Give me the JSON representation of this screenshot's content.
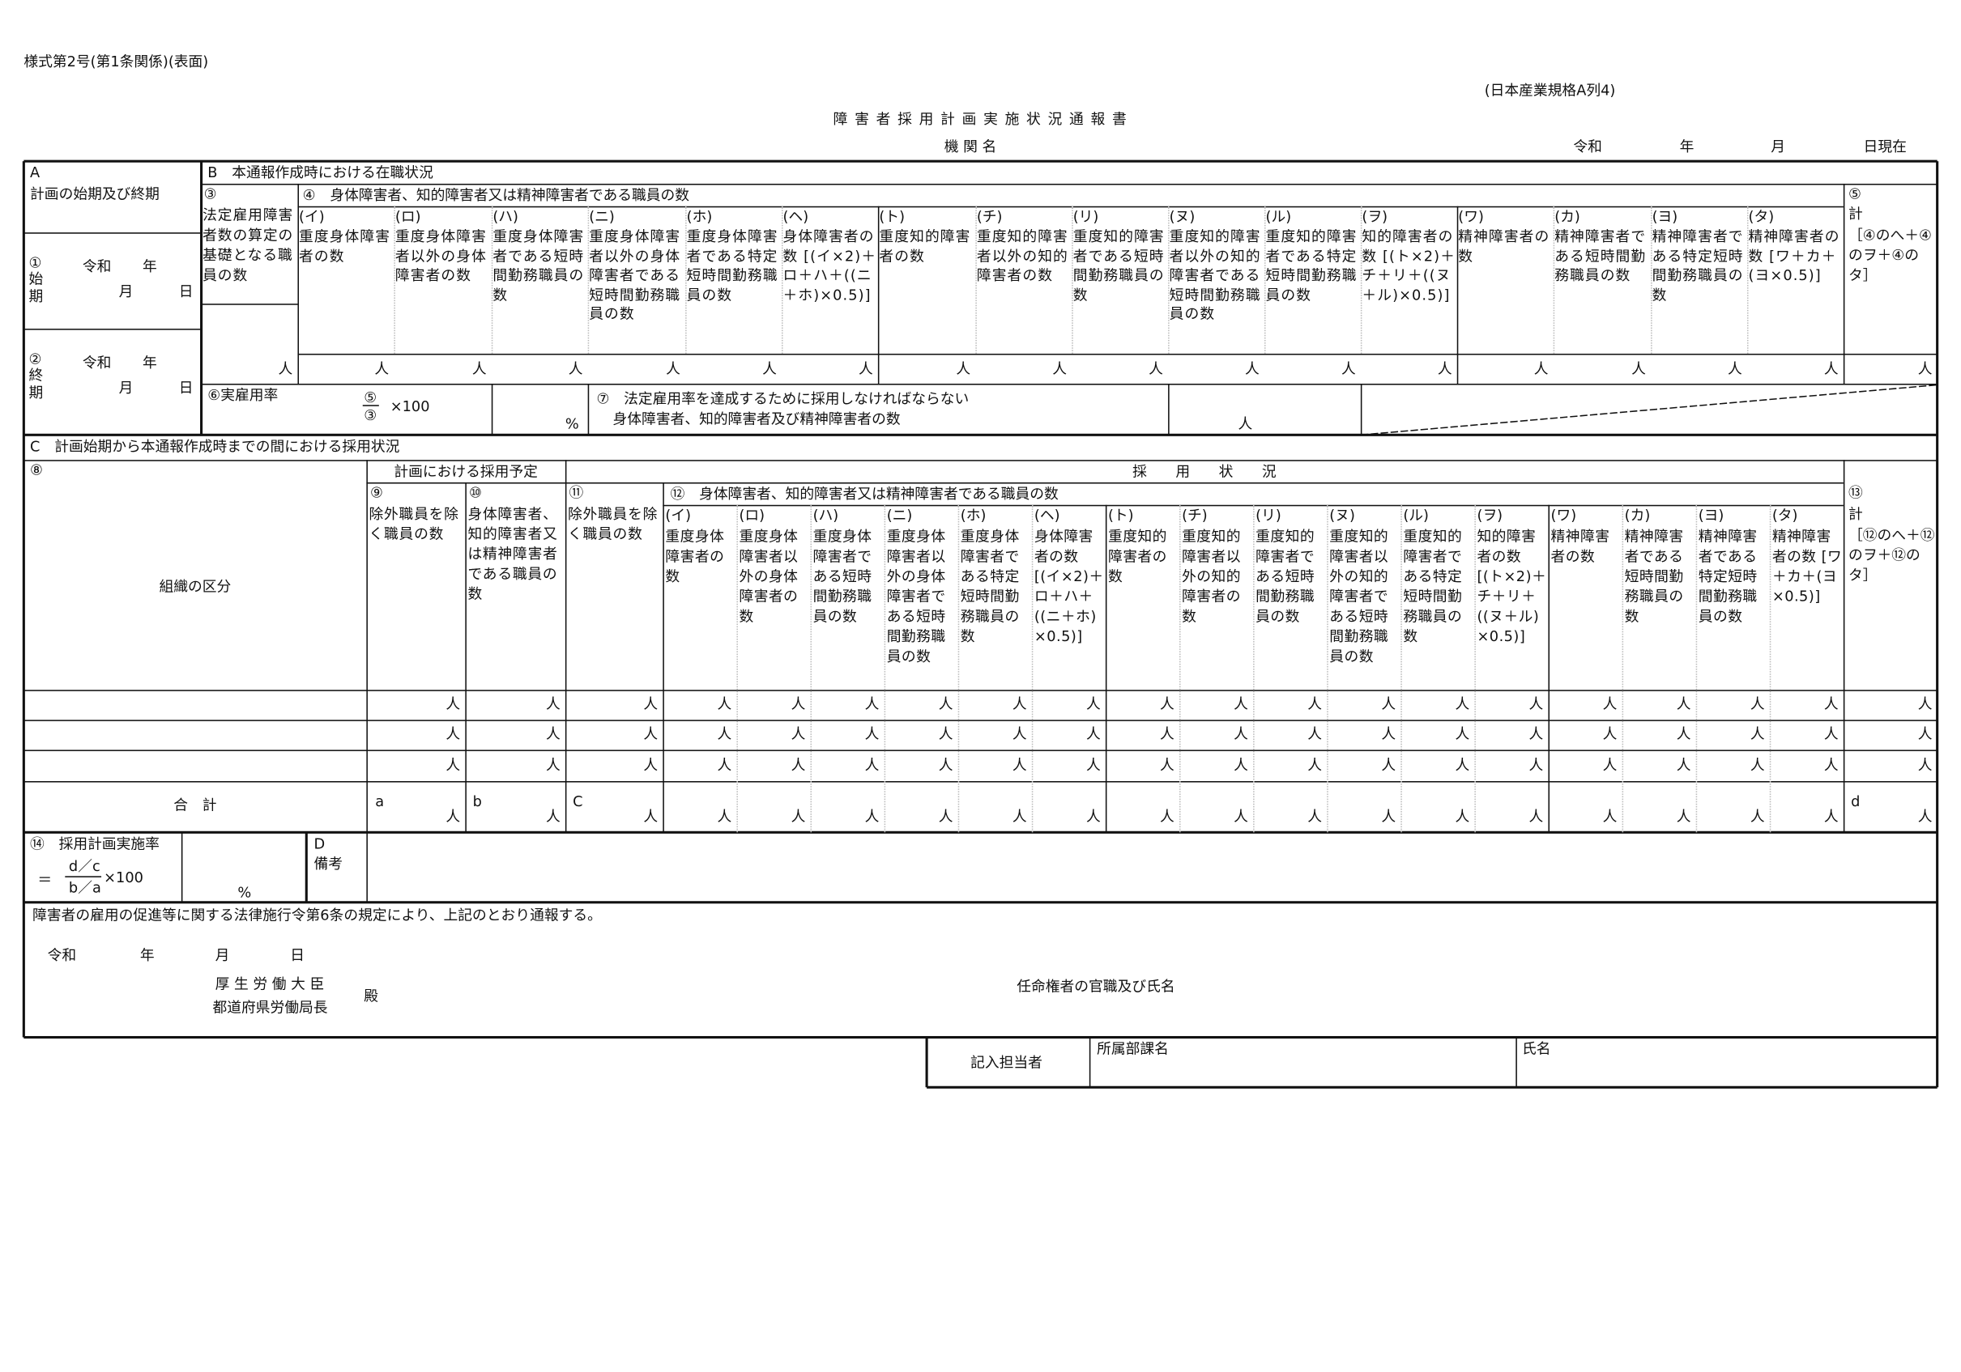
{
  "header": {
    "form_number": "様式第2号(第1条関係)(表面)",
    "jis": "(日本産業規格A列4)",
    "title": "障 害 者 採 用 計 画 実 施 状 況 通 報 書",
    "agency_label": "機 関 名",
    "date": {
      "era": "令和",
      "year": "年",
      "month": "月",
      "day_suffix": "日現在"
    }
  },
  "unit": "人",
  "categories": [
    {
      "code": "(イ)",
      "text": "重度身体障害者の数"
    },
    {
      "code": "(ロ)",
      "text": "重度身体障害者以外の身体障害者の数"
    },
    {
      "code": "(ハ)",
      "text": "重度身体障害者である短時間勤務職員の数"
    },
    {
      "code": "(ニ)",
      "text": "重度身体障害者以外の身体障害者である短時間勤務職員の数"
    },
    {
      "code": "(ホ)",
      "text": "重度身体障害者である特定短時間勤務職員の数"
    },
    {
      "code": "(ヘ)",
      "text": "身体障害者の数 [(イ×2)＋ロ＋ハ＋((ニ＋ホ)×0.5)]"
    },
    {
      "code": "(ト)",
      "text": "重度知的障害者の数"
    },
    {
      "code": "(チ)",
      "text": "重度知的障害者以外の知的障害者の数"
    },
    {
      "code": "(リ)",
      "text": "重度知的障害者である短時間勤務職員の数"
    },
    {
      "code": "(ヌ)",
      "text": "重度知的障害者以外の知的障害者である短時間勤務職員の数"
    },
    {
      "code": "(ル)",
      "text": "重度知的障害者である特定短時間勤務職員の数"
    },
    {
      "code": "(ヲ)",
      "text": "知的障害者の数 [(ト×2)＋チ＋リ＋((ヌ＋ル)×0.5)]"
    },
    {
      "code": "(ワ)",
      "text": "精神障害者の数"
    },
    {
      "code": "(カ)",
      "text": "精神障害者である短時間勤務職員の数"
    },
    {
      "code": "(ヨ)",
      "text": "精神障害者である特定短時間勤務職員の数"
    },
    {
      "code": "(タ)",
      "text": "精神障害者の数 [ワ＋カ＋(ヨ×0.5)]"
    }
  ],
  "sectionA": {
    "label": "A",
    "title": "計画の始期及び終期",
    "start": {
      "num": "①",
      "label": "始期",
      "era": "令和",
      "year": "年",
      "month": "月",
      "day": "日"
    },
    "end": {
      "num": "②",
      "label": "終期",
      "era": "令和",
      "year": "年",
      "month": "月",
      "day": "日"
    }
  },
  "sectionB": {
    "title": "B　本通報作成時における在職状況",
    "col3": {
      "num": "③",
      "text": "法定雇用障害者数の算定の基礎となる職員の数"
    },
    "col4_title": "④　身体障害者、知的障害者又は精神障害者である職員の数",
    "col5": {
      "num": "⑤",
      "text": "計",
      "formula": "［④のへ＋④のヲ＋④のタ］"
    },
    "rate": {
      "label": "⑥実雇用率",
      "numerator": "⑤",
      "denominator": "③",
      "times": "×100",
      "percent": "%"
    },
    "item7": {
      "line1": "⑦　法定雇用率を達成するために採用しなければならない",
      "line2": "身体障害者、知的障害者及び精神障害者の数"
    }
  },
  "sectionC": {
    "title": "C　計画始期から本通報作成時までの間における採用状況",
    "col8": {
      "num": "⑧",
      "text": "組織の区分"
    },
    "plan_header": "計画における採用予定",
    "status_header": "採　　用　　状　　況",
    "col9": {
      "num": "⑨",
      "text": "除外職員を除く職員の数"
    },
    "col10": {
      "num": "⑩",
      "text": "身体障害者、知的障害者又は精神障害者である職員の数"
    },
    "col11": {
      "num": "⑪",
      "text": "除外職員を除く職員の数"
    },
    "col12_title": "⑫　身体障害者、知的障害者又は精神障害者である職員の数",
    "col13": {
      "num": "⑬",
      "text": "計",
      "formula": "［⑫のへ＋⑫のヲ＋⑫のタ］"
    },
    "total_label": "合　計",
    "total_marks": {
      "a": "a",
      "b": "b",
      "c": "C",
      "d": "d"
    }
  },
  "rate14": {
    "label": "⑭　採用計画実施率",
    "eq": "＝",
    "numerator": "d／c",
    "denominator": "b／a",
    "times": "×100",
    "percent": "%"
  },
  "remarks": {
    "label": "D",
    "text": "備考"
  },
  "declaration": {
    "text": "障害者の雇用の促進等に関する法律施行令第6条の規定により、上記のとおり通報する。",
    "era": "令和",
    "year": "年",
    "month": "月",
    "day": "日",
    "addressee1": "厚 生 労 働 大 臣",
    "addressee2": "都道府県労働局長",
    "honorific": "殿",
    "appointer": "任命権者の官職及び氏名"
  },
  "contact": {
    "label": "記入担当者",
    "dept": "所属部課名",
    "name": "氏名"
  }
}
